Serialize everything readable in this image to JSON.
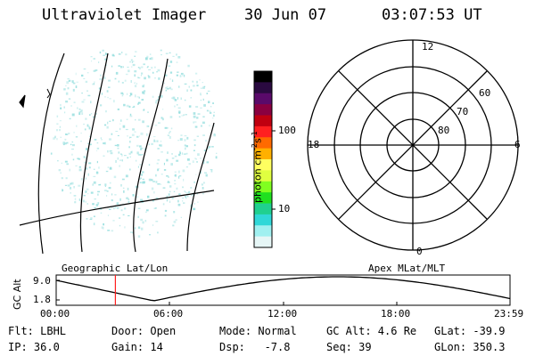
{
  "header": {
    "title": "Ultraviolet Imager",
    "date": "30 Jun 07",
    "time": "03:07:53 UT"
  },
  "colorbar": {
    "ticks": [
      "100",
      "10"
    ],
    "unit_prefix": "photon cm",
    "unit_exp1": "-2",
    "unit_mid": "s",
    "unit_exp2": "-1",
    "colors_top_to_bottom": [
      "#000000",
      "#2a0a40",
      "#5a0a6a",
      "#8a0040",
      "#c00010",
      "#ff2020",
      "#ff6a00",
      "#ffb000",
      "#ffff60",
      "#e0ff40",
      "#80ff20",
      "#20e020",
      "#20d090",
      "#30d8d8",
      "#a0f0f0",
      "#e6f6f6"
    ]
  },
  "polar": {
    "mlt_labels": [
      "12",
      "18",
      "6",
      "0"
    ],
    "lat_labels": [
      "60",
      "70",
      "80"
    ]
  },
  "strip": {
    "left_title": "Geographic Lat/Lon",
    "right_title": "Apex MLat/MLT",
    "ylabel": "GC Alt",
    "ymax": "9.0",
    "ymin": "1.8",
    "xticks": [
      "00:00",
      "06:00",
      "12:00",
      "18:00",
      "23:59"
    ],
    "current_time_hours": 3.13
  },
  "info": {
    "row1": [
      "Flt: LBHL",
      "Door: Open",
      "Mode: Normal",
      "GC Alt: 4.6 Re",
      "GLat: -39.9"
    ],
    "row2": [
      "IP: 36.0",
      "Gain: 14",
      "Dsp:   -7.8",
      "Seq: 39",
      "GLon: 350.3"
    ]
  },
  "theme": {
    "aurora_color": "#8fdcdc",
    "marker_color": "#ff2020"
  }
}
